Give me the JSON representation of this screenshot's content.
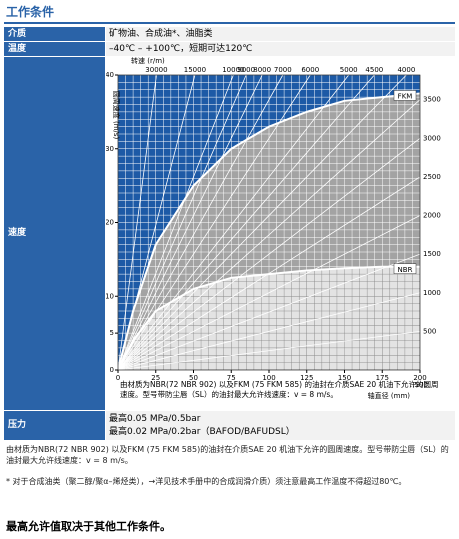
{
  "title": "工作条件",
  "table": {
    "rows": [
      [
        "介质",
        "矿物油、合成油*、油脂类"
      ],
      [
        "温度",
        "–40℃ – +100℃，短期可达120℃"
      ],
      [
        "速度"
      ],
      [
        "压力",
        "最高0.05 MPa/0.5bar",
        "最高0.02 MPa/0.2bar（BAFOD/BAFUDSL）"
      ]
    ]
  },
  "chart_data": {
    "type": "line",
    "x_label": "轴直径 (mm)",
    "y_label": "圆周速度 (m/s)",
    "rpm_label": "转速 (r/m)",
    "xlim": [
      0,
      200
    ],
    "ylim": [
      0,
      40
    ],
    "xticks": [
      0,
      25,
      50,
      75,
      100,
      125,
      150,
      175,
      200
    ],
    "yticks": [
      0,
      5,
      10,
      20,
      30,
      40
    ],
    "x_extra_label": ".500",
    "rpm": [
      30000,
      15000,
      10000,
      9000,
      8000,
      7000,
      6000,
      5000,
      4500,
      4000,
      3500,
      3000,
      2500,
      2000,
      1500,
      1000,
      500
    ],
    "series": [
      {
        "name": "FKM",
        "color": "#a3a3a3",
        "x": [
          0,
          10,
          25,
          50,
          75,
          100,
          125,
          150,
          175,
          200
        ],
        "values": [
          0,
          8,
          17,
          25,
          30,
          33,
          35,
          36.5,
          37,
          37.5
        ]
      },
      {
        "name": "NBR",
        "color": "#e3e3e3",
        "x": [
          0,
          10,
          25,
          50,
          75,
          100,
          125,
          150,
          175,
          200
        ],
        "values": [
          0,
          4,
          8,
          11,
          12.5,
          13,
          13.5,
          13.8,
          14,
          14
        ]
      }
    ],
    "caption": "由材质为NBR(72 NBR 902) 以及FKM (75 FKM 585) 的油封在介质SAE 20 机油下允许的圆周速度。型号带防尘唇（SL）的油封最大允许线速度：v = 8 m/s。"
  },
  "notes": [
    "由材质为NBR(72 NBR 902) 以及FKM (75 FKM 585)的油封在介质SAE 20 机油下允许的圆周速度。型号带防尘唇（SL）的油封最大允许线速度：v = 8 m/s。",
    "* 对于合成油类（聚二醇/聚α–烯烃类），→洋见技术手册中的合成润滑介质）须注意最高工作温度不得超过80℃。"
  ],
  "footer": "最高允许值取决于其他工作条件。"
}
